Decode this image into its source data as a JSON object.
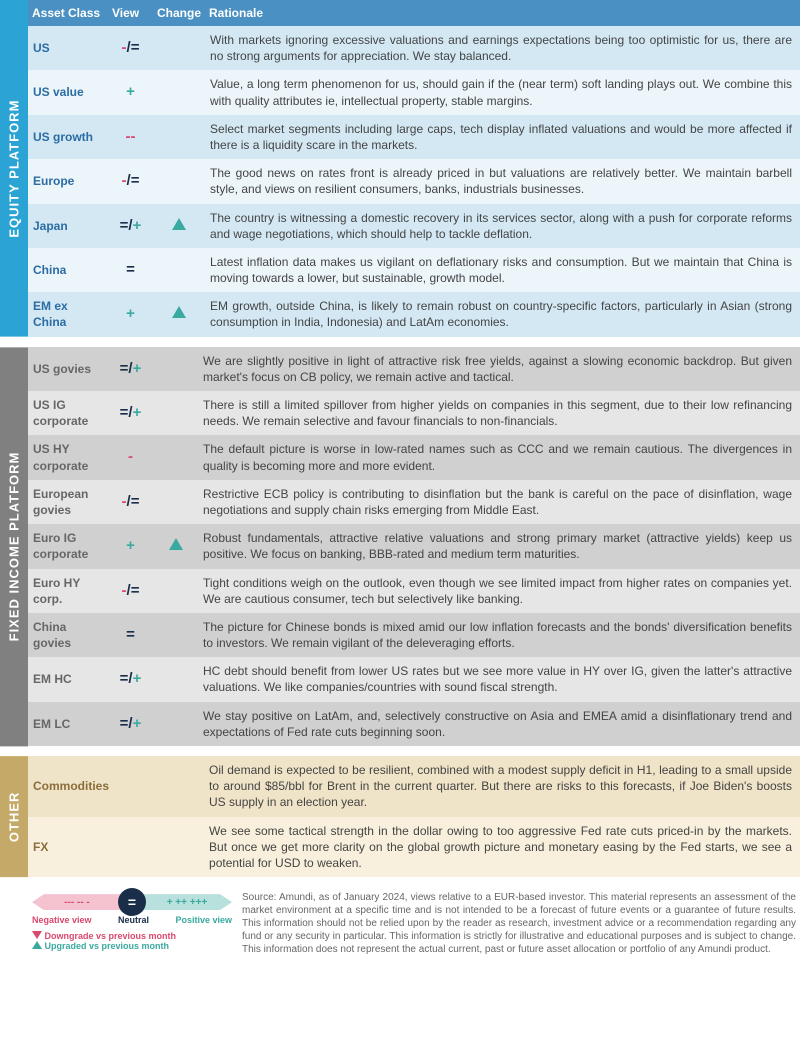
{
  "headers": {
    "asset": "Asset Class",
    "view": "View",
    "change": "Change",
    "rationale": "Rationale"
  },
  "sections": [
    {
      "key": "equity",
      "label": "EQUITY PLATFORM",
      "rows": [
        {
          "asset": "US",
          "view": "-/=",
          "change": "",
          "rat": "With markets ignoring excessive valuations and earnings expectations being too optimistic for us, there are no strong arguments for appreciation. We stay balanced."
        },
        {
          "asset": "US value",
          "view": "+",
          "change": "",
          "rat": "Value, a long term phenomenon for us, should gain if the (near term) soft landing plays out. We combine this with quality attributes ie, intellectual property, stable margins."
        },
        {
          "asset": "US growth",
          "view": "--",
          "change": "",
          "rat": "Select market segments including large caps, tech display inflated valuations and would be more affected if there is a liquidity scare in the markets."
        },
        {
          "asset": "Europe",
          "view": "-/=",
          "change": "",
          "rat": "The good news on rates front is already priced in but valuations are relatively better. We maintain barbell style, and views on resilient consumers, banks, industrials businesses."
        },
        {
          "asset": "Japan",
          "view": "=/+",
          "change": "up",
          "rat": "The country is witnessing a domestic recovery in its services sector, along with a push for corporate reforms and wage negotiations, which should help to tackle deflation."
        },
        {
          "asset": "China",
          "view": "=",
          "change": "",
          "rat": "Latest inflation data makes us vigilant on deflationary risks and consumption. But we maintain that China is moving towards a lower, but sustainable, growth model."
        },
        {
          "asset": "EM ex China",
          "view": "+",
          "change": "up",
          "rat": "EM growth, outside China, is likely to remain robust on country-specific factors, particularly in Asian (strong consumption in India, Indonesia) and LatAm economies."
        }
      ]
    },
    {
      "key": "fixed",
      "label": "FIXED INCOME PLATFORM",
      "rows": [
        {
          "asset": "US govies",
          "view": "=/+",
          "change": "",
          "rat": "We are slightly positive in light of attractive risk free yields, against a slowing economic backdrop. But given market's focus on CB policy, we remain active and tactical."
        },
        {
          "asset": "US IG corporate",
          "view": "=/+",
          "change": "",
          "rat": "There is still a limited spillover from higher yields on companies in this segment, due to their low refinancing needs. We remain selective and favour financials to non-financials."
        },
        {
          "asset": "US HY corporate",
          "view": "-",
          "change": "",
          "rat": "The default picture is worse in low-rated names such as CCC and we remain cautious. The divergences in quality is becoming more and more evident."
        },
        {
          "asset": "European govies",
          "view": "-/=",
          "change": "",
          "rat": "Restrictive ECB policy is contributing to disinflation but the bank is careful on the pace of disinflation, wage negotiations and supply chain risks emerging from Middle East."
        },
        {
          "asset": "Euro IG corporate",
          "view": "+",
          "change": "up",
          "rat": "Robust fundamentals, attractive relative valuations and strong primary market (attractive yields) keep us positive. We focus on banking, BBB-rated and medium term maturities."
        },
        {
          "asset": "Euro HY corp.",
          "view": "-/=",
          "change": "",
          "rat": "Tight conditions weigh on the outlook, even though we see limited impact from higher rates on companies yet. We are cautious consumer, tech but selectively like banking."
        },
        {
          "asset": "China govies",
          "view": "=",
          "change": "",
          "rat": "The picture for Chinese bonds is mixed amid our low inflation forecasts and the bonds' diversification benefits to investors. We remain vigilant of the deleveraging efforts."
        },
        {
          "asset": "EM HC",
          "view": "=/+",
          "change": "",
          "rat": "HC debt should benefit from lower US rates but we see more value in HY over IG, given the latter's attractive valuations. We like companies/countries with sound fiscal strength."
        },
        {
          "asset": "EM LC",
          "view": "=/+",
          "change": "",
          "rat": "We stay positive on LatAm, and, selectively constructive on Asia and EMEA amid a disinflationary trend and expectations of Fed rate cuts beginning soon."
        }
      ]
    },
    {
      "key": "other",
      "label": "OTHER",
      "rows": [
        {
          "asset": "Commodities",
          "view": "",
          "change": "",
          "rat": "Oil demand is expected to be resilient, combined with a modest supply deficit in H1, leading to a small upside to around $85/bbl for Brent in the current quarter. But there are risks to this forecasts, if Joe Biden's boosts US supply in an election year."
        },
        {
          "asset": "FX",
          "view": "",
          "change": "",
          "rat": "We see some tactical strength in the dollar owing to too aggressive Fed rate cuts priced-in by the markets. But once we get more clarity on the global growth picture and monetary easing by the Fed starts, we see a potential for USD to weaken."
        }
      ]
    }
  ],
  "legend": {
    "neg": "--- -- -",
    "eq": "=",
    "pos": "+ ++ +++",
    "neglabel": "Negative view",
    "neulabel": "Neutral",
    "poslabel": "Positive view",
    "downgrade": "Downgrade vs previous month",
    "upgrade": "Upgraded vs previous month"
  },
  "source": "Source: Amundi, as of January 2024, views relative to a EUR-based investor. This material represents an assessment of the market environment at a specific time and is not intended to be a forecast of future events or a guarantee of future results. This information should not be relied upon by the reader as research, investment advice or a recommendation regarding any fund or any security in particular. This information is strictly for illustrative and educational purposes and is subject to change. This information does not represent the actual current, past or future asset allocation or portfolio of any Amundi product.",
  "colors": {
    "neg": "#d9486e",
    "pos": "#3aa99f",
    "neu": "#1a2e4a"
  }
}
